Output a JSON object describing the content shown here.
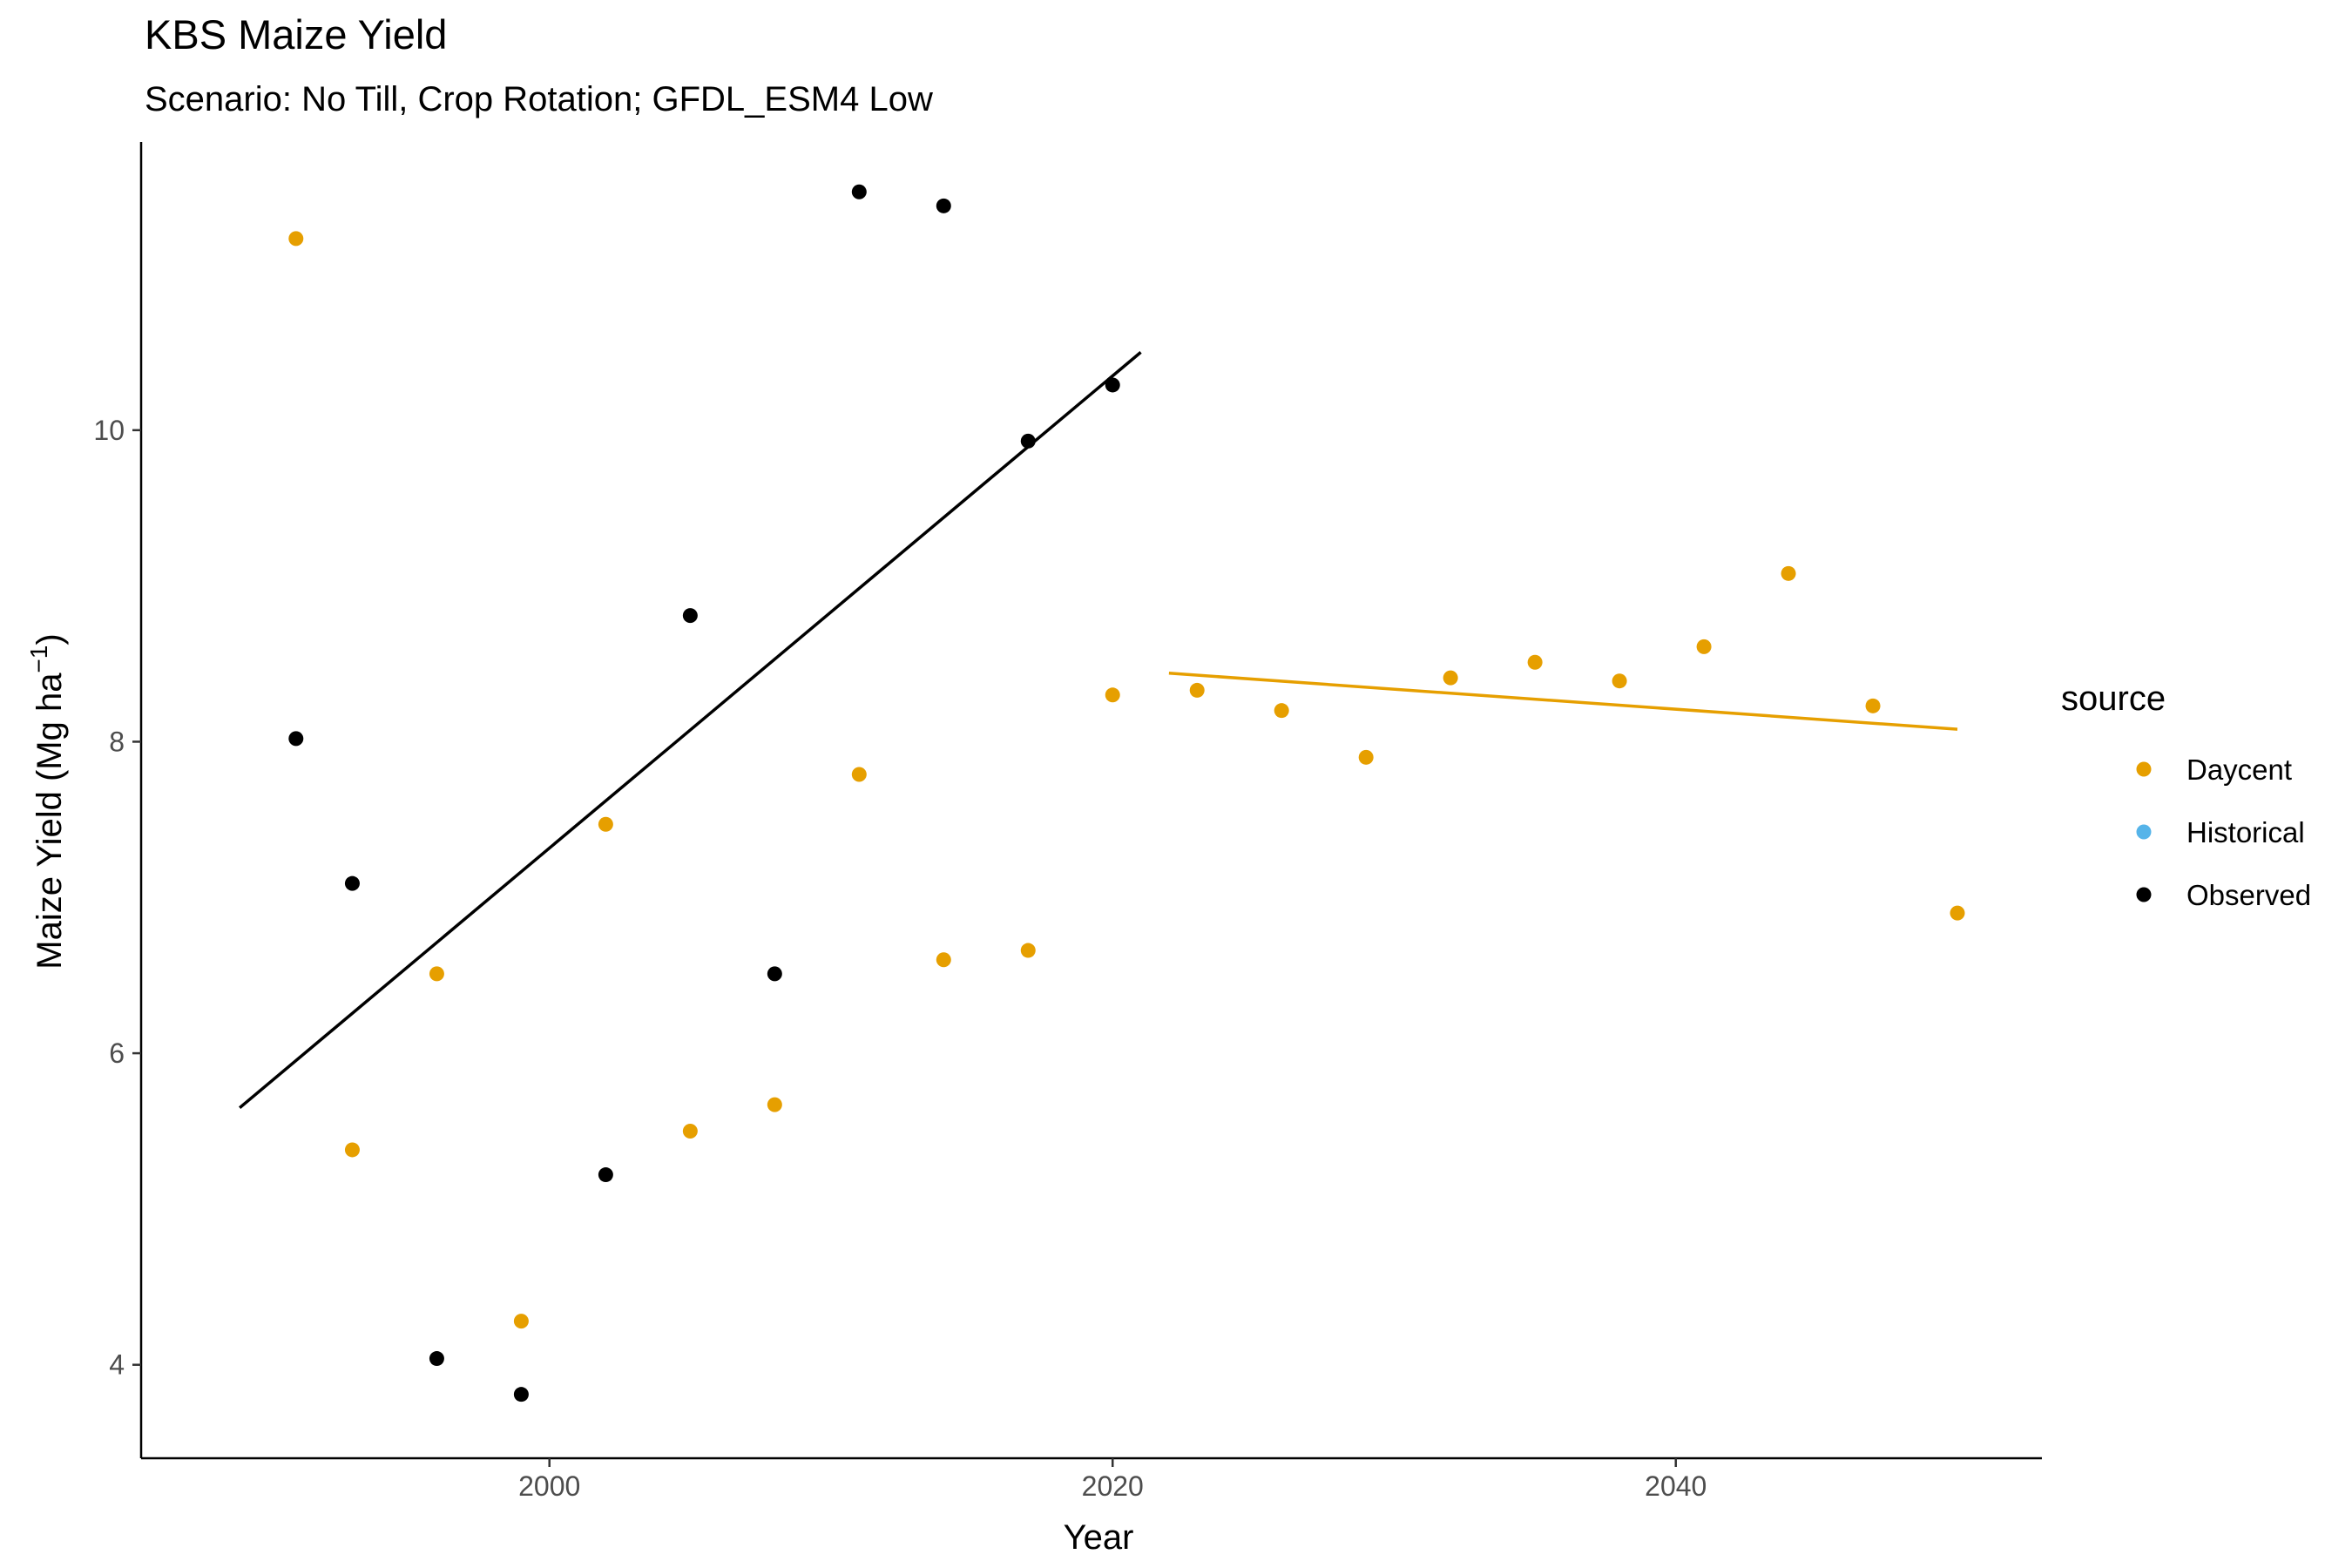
{
  "chart_data": {
    "type": "scatter",
    "title": "KBS Maize Yield",
    "subtitle": "Scenario: No Till, Crop Rotation; GFDL_ESM4 Low",
    "xlabel": "Year",
    "ylabel_main": "Maize Yield (Mg ha",
    "ylabel_sup": "−1",
    "ylabel_close": ")",
    "xlim": [
      1985.5,
      2053
    ],
    "ylim": [
      3.4,
      11.85
    ],
    "xticks": [
      2000,
      2020,
      2040
    ],
    "xtick_labels": [
      "2000",
      "2020",
      "2040"
    ],
    "yticks": [
      4,
      6,
      8,
      10
    ],
    "ytick_labels": [
      "4",
      "6",
      "8",
      "10"
    ],
    "grid": false,
    "legend": {
      "title": "source",
      "position": "right",
      "entries": [
        {
          "label": "Daycent",
          "color": "#E69F00"
        },
        {
          "label": "Historical",
          "color": "#56B4E9"
        },
        {
          "label": "Observed",
          "color": "#000000"
        }
      ]
    },
    "series": [
      {
        "name": "Daycent",
        "color": "#E69F00",
        "points": [
          {
            "x": 1991,
            "y": 11.23
          },
          {
            "x": 1993,
            "y": 5.38
          },
          {
            "x": 1996,
            "y": 6.51
          },
          {
            "x": 1999,
            "y": 4.28
          },
          {
            "x": 2002,
            "y": 7.47
          },
          {
            "x": 2005,
            "y": 5.5
          },
          {
            "x": 2008,
            "y": 5.67
          },
          {
            "x": 2011,
            "y": 7.79
          },
          {
            "x": 2014,
            "y": 6.6
          },
          {
            "x": 2017,
            "y": 6.66
          },
          {
            "x": 2020,
            "y": 8.3
          },
          {
            "x": 2023,
            "y": 8.33
          },
          {
            "x": 2026,
            "y": 8.2
          },
          {
            "x": 2029,
            "y": 7.9
          },
          {
            "x": 2032,
            "y": 8.41
          },
          {
            "x": 2035,
            "y": 8.51
          },
          {
            "x": 2038,
            "y": 8.39
          },
          {
            "x": 2041,
            "y": 8.61
          },
          {
            "x": 2044,
            "y": 9.08
          },
          {
            "x": 2047,
            "y": 8.23
          },
          {
            "x": 2050,
            "y": 6.9
          }
        ]
      },
      {
        "name": "Historical",
        "color": "#56B4E9",
        "points": []
      },
      {
        "name": "Observed",
        "color": "#000000",
        "points": [
          {
            "x": 1991,
            "y": 8.02
          },
          {
            "x": 1993,
            "y": 7.09
          },
          {
            "x": 1996,
            "y": 4.04
          },
          {
            "x": 1999,
            "y": 3.81
          },
          {
            "x": 2002,
            "y": 5.22
          },
          {
            "x": 2005,
            "y": 8.81
          },
          {
            "x": 2008,
            "y": 6.51
          },
          {
            "x": 2011,
            "y": 11.53
          },
          {
            "x": 2014,
            "y": 11.44
          },
          {
            "x": 2017,
            "y": 9.93
          },
          {
            "x": 2020,
            "y": 10.29
          }
        ]
      }
    ],
    "trend_lines": [
      {
        "series": "Observed",
        "color": "#000000",
        "x1": 1989,
        "y1": 5.65,
        "x2": 2021,
        "y2": 10.5
      },
      {
        "series": "Daycent",
        "color": "#E69F00",
        "x1": 2022,
        "y1": 8.44,
        "x2": 2050,
        "y2": 8.08
      }
    ]
  }
}
